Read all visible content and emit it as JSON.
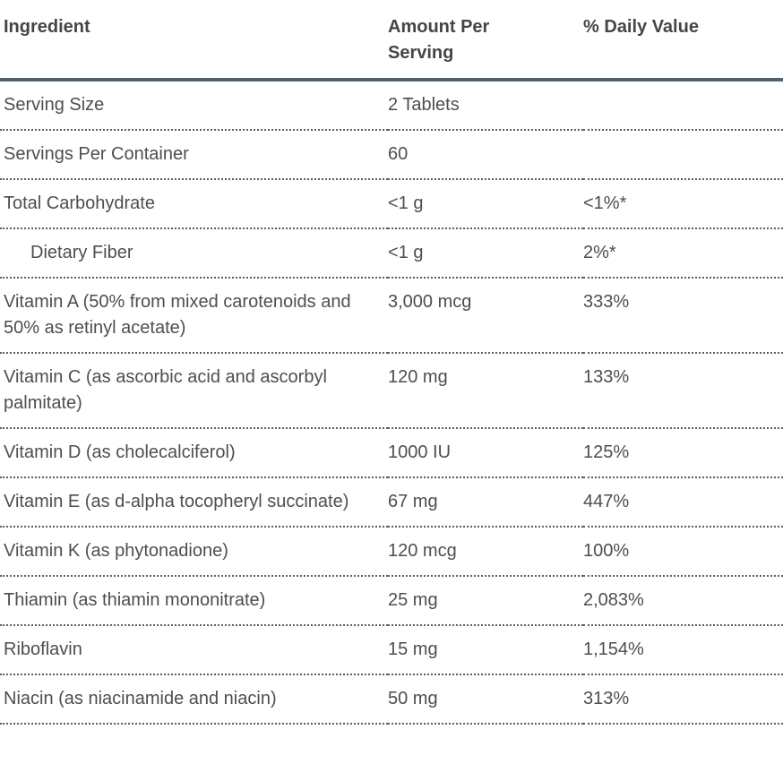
{
  "table": {
    "columns": [
      {
        "label": "Ingredient"
      },
      {
        "label": "Amount Per Serving"
      },
      {
        "label": "% Daily Value"
      }
    ],
    "rows": [
      {
        "ingredient": "Serving Size",
        "amount": "2 Tablets",
        "daily_value": "",
        "indent": false
      },
      {
        "ingredient": "Servings Per Container",
        "amount": "60",
        "daily_value": "",
        "indent": false
      },
      {
        "ingredient": "Total Carbohydrate",
        "amount": "<1 g",
        "daily_value": "<1%*",
        "indent": false
      },
      {
        "ingredient": "Dietary Fiber",
        "amount": "<1 g",
        "daily_value": "2%*",
        "indent": true
      },
      {
        "ingredient": "Vitamin A (50% from mixed carotenoids and 50% as retinyl acetate)",
        "amount": "3,000 mcg",
        "daily_value": "333%",
        "indent": false
      },
      {
        "ingredient": "Vitamin C (as ascorbic acid and ascorbyl palmitate)",
        "amount": "120 mg",
        "daily_value": "133%",
        "indent": false
      },
      {
        "ingredient": "Vitamin D (as cholecalciferol)",
        "amount": "1000 IU",
        "daily_value": "125%",
        "indent": false
      },
      {
        "ingredient": "Vitamin E (as d-alpha tocopheryl succinate)",
        "amount": "67 mg",
        "daily_value": "447%",
        "indent": false
      },
      {
        "ingredient": "Vitamin K (as phytonadione)",
        "amount": "120 mcg",
        "daily_value": "100%",
        "indent": false
      },
      {
        "ingredient": "Thiamin (as thiamin mononitrate)",
        "amount": "25 mg",
        "daily_value": "2,083%",
        "indent": false
      },
      {
        "ingredient": "Riboflavin",
        "amount": "15 mg",
        "daily_value": "1,154%",
        "indent": false
      },
      {
        "ingredient": "Niacin (as niacinamide and niacin)",
        "amount": "50 mg",
        "daily_value": "313%",
        "indent": false
      }
    ]
  },
  "colors": {
    "text": "#4e4e4e",
    "header_text": "#454545",
    "rule": "#53616d",
    "background": "#ffffff"
  }
}
